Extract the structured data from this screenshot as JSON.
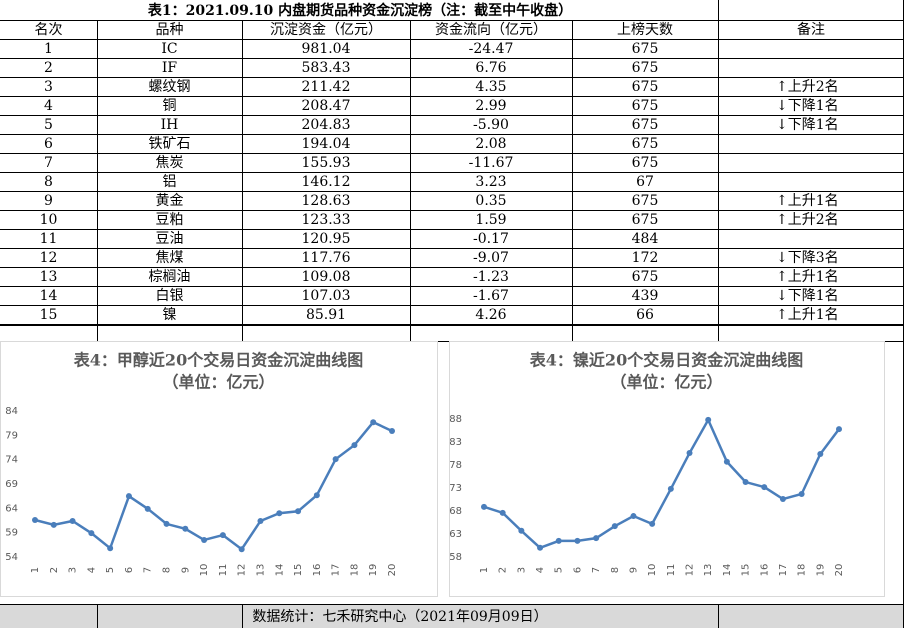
{
  "table": {
    "title": "表1：2021.09.10 内盘期货品种资金沉淀榜（注：截至中午收盘）",
    "columns": [
      "名次",
      "品种",
      "沉淀资金（亿元）",
      "资金流向（亿元）",
      "上榜天数",
      "备注"
    ],
    "rows": [
      [
        "1",
        "IC",
        "981.04",
        "-24.47",
        "675",
        null
      ],
      [
        "2",
        "IF",
        "583.43",
        "6.76",
        "675",
        null
      ],
      [
        "3",
        "螺纹钢",
        "211.42",
        "4.35",
        "675",
        "↑上升2名"
      ],
      [
        "4",
        "铜",
        "208.47",
        "2.99",
        "675",
        "↓下降1名"
      ],
      [
        "5",
        "IH",
        "204.83",
        "-5.90",
        "675",
        "↓下降1名"
      ],
      [
        "6",
        "铁矿石",
        "194.04",
        "2.08",
        "675",
        null
      ],
      [
        "7",
        "焦炭",
        "155.93",
        "-11.67",
        "675",
        null
      ],
      [
        "8",
        "铝",
        "146.12",
        "3.23",
        "67",
        null
      ],
      [
        "9",
        "黄金",
        "128.63",
        "0.35",
        "675",
        "↑上升1名"
      ],
      [
        "10",
        "豆粕",
        "123.33",
        "1.59",
        "675",
        "↑上升2名"
      ],
      [
        "11",
        "豆油",
        "120.95",
        "-0.17",
        "484",
        null
      ],
      [
        "12",
        "焦煤",
        "117.76",
        "-9.07",
        "172",
        "↓下降3名"
      ],
      [
        "13",
        "棕榈油",
        "109.08",
        "-1.23",
        "675",
        "↑上升1名"
      ],
      [
        "14",
        "白银",
        "107.03",
        "-1.67",
        "439",
        "↓下降1名"
      ],
      [
        "15",
        "镍",
        "85.91",
        "4.26",
        "66",
        "↑上升1名"
      ]
    ]
  },
  "chart_data": [
    {
      "type": "line",
      "title": "表4：甲醇近20个交易日资金沉淀曲线图",
      "subtitle": "（单位：亿元）",
      "categories": [
        "1",
        "2",
        "3",
        "4",
        "5",
        "6",
        "7",
        "8",
        "9",
        "10",
        "11",
        "12",
        "13",
        "14",
        "15",
        "16",
        "17",
        "18",
        "19",
        "20"
      ],
      "series": [
        {
          "color": "#4a7ebb",
          "values": [
            61.6,
            60.6,
            61.4,
            58.9,
            55.8,
            66.5,
            63.9,
            60.8,
            59.8,
            57.5,
            58.5,
            55.6,
            61.4,
            63.0,
            63.4,
            66.7,
            74.1,
            77.0,
            81.7,
            79.9
          ]
        }
      ],
      "ylim": [
        54,
        84
      ],
      "yticks": [
        54,
        59,
        64,
        69,
        74,
        79,
        84
      ],
      "grid": false
    },
    {
      "type": "line",
      "title": "表4：镍近20个交易日资金沉淀曲线图",
      "subtitle": "（单位：亿元）",
      "categories": [
        "1",
        "2",
        "3",
        "4",
        "5",
        "6",
        "7",
        "8",
        "9",
        "10",
        "11",
        "12",
        "13",
        "14",
        "15",
        "16",
        "17",
        "18",
        "19",
        "20"
      ],
      "series": [
        {
          "color": "#4a7ebb",
          "values": [
            68.9,
            67.6,
            63.7,
            60.0,
            61.5,
            61.5,
            62.1,
            64.7,
            66.9,
            65.2,
            72.8,
            80.6,
            87.8,
            78.7,
            74.3,
            73.2,
            70.6,
            71.7,
            80.4,
            85.8
          ]
        }
      ],
      "ylim": [
        58,
        88
      ],
      "yticks": [
        58,
        63,
        68,
        73,
        78,
        83,
        88
      ],
      "grid": false
    }
  ],
  "footer": "数据统计：七禾研究中心（2021年09月09日）"
}
